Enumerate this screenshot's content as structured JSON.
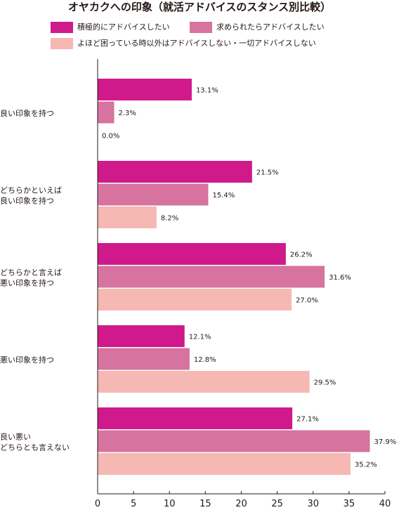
{
  "chart_data": {
    "type": "bar",
    "orientation": "horizontal",
    "title": "オヤカクへの印象（就活アドバイスのスタンス別比較）",
    "categories": [
      "良い印象を持つ",
      "どちらかといえば\n良い印象を持つ",
      "どちらかと言えば\n悪い印象を持つ",
      "悪い印象を持つ",
      "良い悪い\nどちらとも言えない"
    ],
    "series": [
      {
        "name": "積極的にアドバイスしたい",
        "color": "#d0198a",
        "values": [
          13.1,
          21.5,
          26.2,
          12.1,
          27.1
        ]
      },
      {
        "name": "求められたらアドバイスしたい",
        "color": "#d6739f",
        "values": [
          2.3,
          15.4,
          31.6,
          12.8,
          37.9
        ]
      },
      {
        "name": "よほど困っている時以外はアドバイスしない・一切アドバイスしない",
        "color": "#f5b8b3",
        "values": [
          0.0,
          8.2,
          27.0,
          29.5,
          35.2
        ]
      }
    ],
    "value_labels": [
      [
        "13.1%",
        "21.5%",
        "26.2%",
        "12.1%",
        "27.1%"
      ],
      [
        "2.3%",
        "15.4%",
        "31.6%",
        "12.8%",
        "37.9%"
      ],
      [
        "0.0%",
        "8.2%",
        "27.0%",
        "29.5%",
        "35.2%"
      ]
    ],
    "xlim": [
      0,
      40
    ],
    "xticks": [
      "0",
      "5",
      "10",
      "15",
      "20",
      "25",
      "30",
      "35",
      "40"
    ],
    "xlabel": "",
    "ylabel": "",
    "grid": false,
    "legend": "top"
  }
}
